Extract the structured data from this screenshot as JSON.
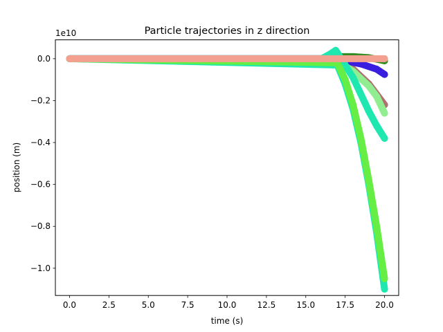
{
  "chart_data": {
    "type": "scatter",
    "title": "Particle trajectories in z direction",
    "xlabel": "time (s)",
    "ylabel": "position (m)",
    "y_scale_label": "1e10",
    "xlim": [
      -0.9,
      20.9
    ],
    "ylim": [
      -1.13,
      0.09
    ],
    "x_ticks": [
      0.0,
      2.5,
      5.0,
      7.5,
      10.0,
      12.5,
      15.0,
      17.5,
      20.0
    ],
    "x_tick_labels": [
      "0.0",
      "2.5",
      "5.0",
      "7.5",
      "10.0",
      "12.5",
      "15.0",
      "17.5",
      "20.0"
    ],
    "y_ticks": [
      0.0,
      -0.2,
      -0.4,
      -0.6,
      -0.8,
      -1.0
    ],
    "y_tick_labels": [
      "0.0",
      "−0.2",
      "−0.4",
      "−0.6",
      "−0.8",
      "−1.0"
    ],
    "grid": false,
    "legend": "none",
    "series": [
      {
        "color": "#2e8b1f",
        "x": [
          0,
          16.0,
          17.0,
          18.0,
          19.0,
          20.0
        ],
        "values": [
          0,
          0.0,
          0.01,
          0.01,
          0.005,
          -0.01
        ]
      },
      {
        "color": "#b07070",
        "x": [
          0,
          17.0,
          18.0,
          19.0,
          19.5,
          20.0
        ],
        "values": [
          0,
          -0.01,
          -0.05,
          -0.12,
          -0.17,
          -0.22
        ]
      },
      {
        "color": "#3a1ee0",
        "x": [
          0,
          16.5,
          17.5,
          18.5,
          19.5,
          20.0
        ],
        "values": [
          0,
          0.0,
          -0.01,
          -0.025,
          -0.05,
          -0.075
        ]
      },
      {
        "color": "#90ee90",
        "x": [
          0,
          17.0,
          18.0,
          19.0,
          19.5,
          20.0
        ],
        "values": [
          0,
          -0.01,
          -0.06,
          -0.13,
          -0.18,
          -0.26
        ]
      },
      {
        "color": "#1ee8b0",
        "x": [
          0,
          16.0,
          16.5,
          16.9,
          17.5,
          18.0,
          18.5,
          19.0,
          19.5,
          20.0
        ],
        "values": [
          0,
          0.0,
          0.02,
          0.04,
          -0.03,
          -0.09,
          -0.17,
          -0.25,
          -0.32,
          -0.38
        ]
      },
      {
        "color": "#1ee8b0",
        "x": [
          0,
          17.0,
          17.5,
          18.0,
          18.5,
          19.0,
          19.5,
          20.0
        ],
        "values": [
          0,
          -0.03,
          -0.12,
          -0.24,
          -0.4,
          -0.6,
          -0.83,
          -1.1
        ]
      },
      {
        "color": "#66ee44",
        "x": [
          0,
          17.0,
          17.5,
          18.0,
          18.5,
          19.0,
          19.5,
          20.0
        ],
        "values": [
          0,
          -0.02,
          -0.1,
          -0.22,
          -0.38,
          -0.58,
          -0.8,
          -1.05
        ]
      },
      {
        "color": "#f4a090",
        "x": [
          0,
          20.0
        ],
        "values": [
          0,
          0
        ]
      }
    ]
  }
}
